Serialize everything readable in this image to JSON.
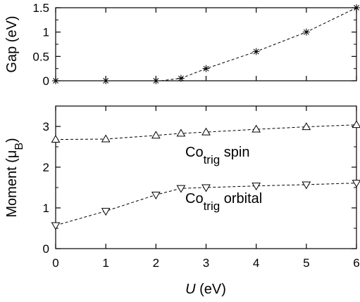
{
  "chart_data": [
    {
      "type": "line",
      "ylabel": "Gap (eV)",
      "xlim": [
        0,
        6
      ],
      "ylim": [
        0,
        1.5
      ],
      "xticks": [
        0,
        1,
        2,
        3,
        4,
        5,
        6
      ],
      "yticks": [
        0,
        0.5,
        1,
        1.5
      ],
      "ytick_labels": [
        "0",
        "0.5",
        "1",
        "1.5"
      ],
      "grid": false,
      "series": [
        {
          "marker": "star",
          "x": [
            0,
            1,
            2,
            2.5,
            3,
            4,
            5,
            6
          ],
          "y": [
            0,
            0,
            0,
            0.05,
            0.25,
            0.6,
            1.0,
            1.5
          ],
          "fit_x": [
            2.1,
            2.5,
            3,
            4,
            5,
            6
          ],
          "fit_y": [
            0,
            0.05,
            0.25,
            0.6,
            1.0,
            1.5
          ]
        }
      ]
    },
    {
      "type": "line",
      "xlabel": "U (eV)",
      "xlabel_main": "U",
      "xlabel_unit": " (eV)",
      "ylabel": "Moment (μB)",
      "ylabel_main": "Moment (μ",
      "ylabel_sub": "B",
      "ylabel_end": ")",
      "xlim": [
        0,
        6
      ],
      "ylim": [
        0,
        3.5
      ],
      "xticks": [
        0,
        1,
        2,
        3,
        4,
        5,
        6
      ],
      "xtick_labels": [
        "0",
        "1",
        "2",
        "3",
        "4",
        "5",
        "6"
      ],
      "yticks": [
        0,
        1,
        2,
        3
      ],
      "ytick_labels": [
        "0",
        "1",
        "2",
        "3"
      ],
      "grid": false,
      "series": [
        {
          "marker": "triangle-up",
          "x": [
            0,
            1,
            2,
            2.5,
            3,
            4,
            5,
            6
          ],
          "y": [
            2.68,
            2.69,
            2.78,
            2.83,
            2.86,
            2.93,
            2.99,
            3.04
          ]
        },
        {
          "marker": "triangle-down",
          "x": [
            0,
            1,
            2,
            2.5,
            3,
            4,
            5,
            6
          ],
          "y": [
            0.57,
            0.92,
            1.32,
            1.48,
            1.5,
            1.54,
            1.57,
            1.61
          ]
        }
      ],
      "annotations": [
        {
          "main": "Co",
          "sub": "trig",
          "rest": " spin",
          "x": 2.75,
          "y": 2.25
        },
        {
          "main": "Co",
          "sub": "trig",
          "rest": " orbital",
          "x": 2.75,
          "y": 1.03
        }
      ]
    }
  ]
}
